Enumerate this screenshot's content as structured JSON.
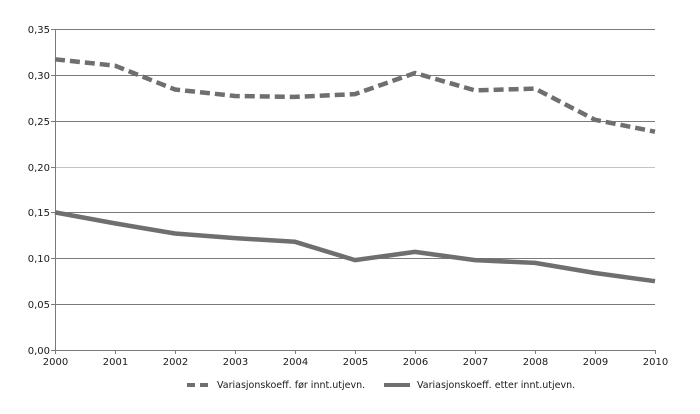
{
  "chart_data": {
    "type": "line",
    "title": "",
    "xlabel": "",
    "ylabel": "",
    "x": [
      "2000",
      "2001",
      "2002",
      "2003",
      "2004",
      "2005",
      "2006",
      "2007",
      "2008",
      "2009",
      "2010"
    ],
    "series": [
      {
        "name": "Variasjonskoeff. før innt.utjevn.",
        "style": "dashed",
        "color": "#6f6f71",
        "values": [
          0.317,
          0.31,
          0.284,
          0.277,
          0.276,
          0.279,
          0.302,
          0.283,
          0.285,
          0.251,
          0.238
        ]
      },
      {
        "name": "Variasjonskoeff. etter innt.utjevn.",
        "style": "solid",
        "color": "#6f6f71",
        "values": [
          0.15,
          0.138,
          0.127,
          0.122,
          0.118,
          0.098,
          0.107,
          0.098,
          0.095,
          0.084,
          0.075
        ]
      }
    ],
    "ylim": [
      0,
      0.35
    ],
    "yticks": [
      0,
      0.05,
      0.1,
      0.15,
      0.2,
      0.25,
      0.3,
      0.35
    ],
    "ytick_labels": [
      "0,00",
      "0,05",
      "0,10",
      "0,15",
      "0,20",
      "0,25",
      "0,30",
      "0,35"
    ],
    "grid": true,
    "legend_position": "bottom"
  },
  "colors": {
    "gridline": "#7a7a7a",
    "gridline_light": "#c4c4c4",
    "axis": "#7a7a7a",
    "series": "#6f6f71"
  }
}
